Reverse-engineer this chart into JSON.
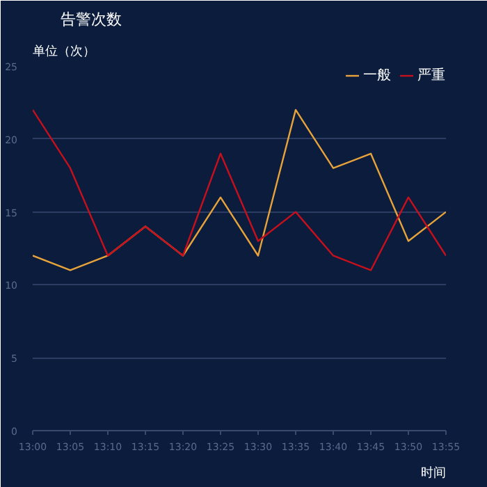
{
  "chart_data": {
    "type": "line",
    "title": "告警次数",
    "ylabel": "单位（次）",
    "xlabel": "时间",
    "categories": [
      "13:00",
      "13:05",
      "13:10",
      "13:15",
      "13:20",
      "13:25",
      "13:30",
      "13:35",
      "13:40",
      "13:45",
      "13:50",
      "13:55"
    ],
    "series": [
      {
        "name": "一般",
        "color": "#e8a33a",
        "values": [
          12,
          11,
          12,
          14,
          12,
          16,
          12,
          22,
          18,
          19,
          13,
          15
        ]
      },
      {
        "name": "严重",
        "color": "#c8101c",
        "values": [
          22,
          18,
          12,
          14,
          12,
          19,
          13,
          15,
          12,
          11,
          16,
          12
        ]
      }
    ],
    "ylim": [
      0,
      25
    ],
    "yticks": [
      0,
      5,
      10,
      15,
      20,
      25
    ],
    "grid": "y",
    "legend": "top right",
    "marker": "none"
  }
}
